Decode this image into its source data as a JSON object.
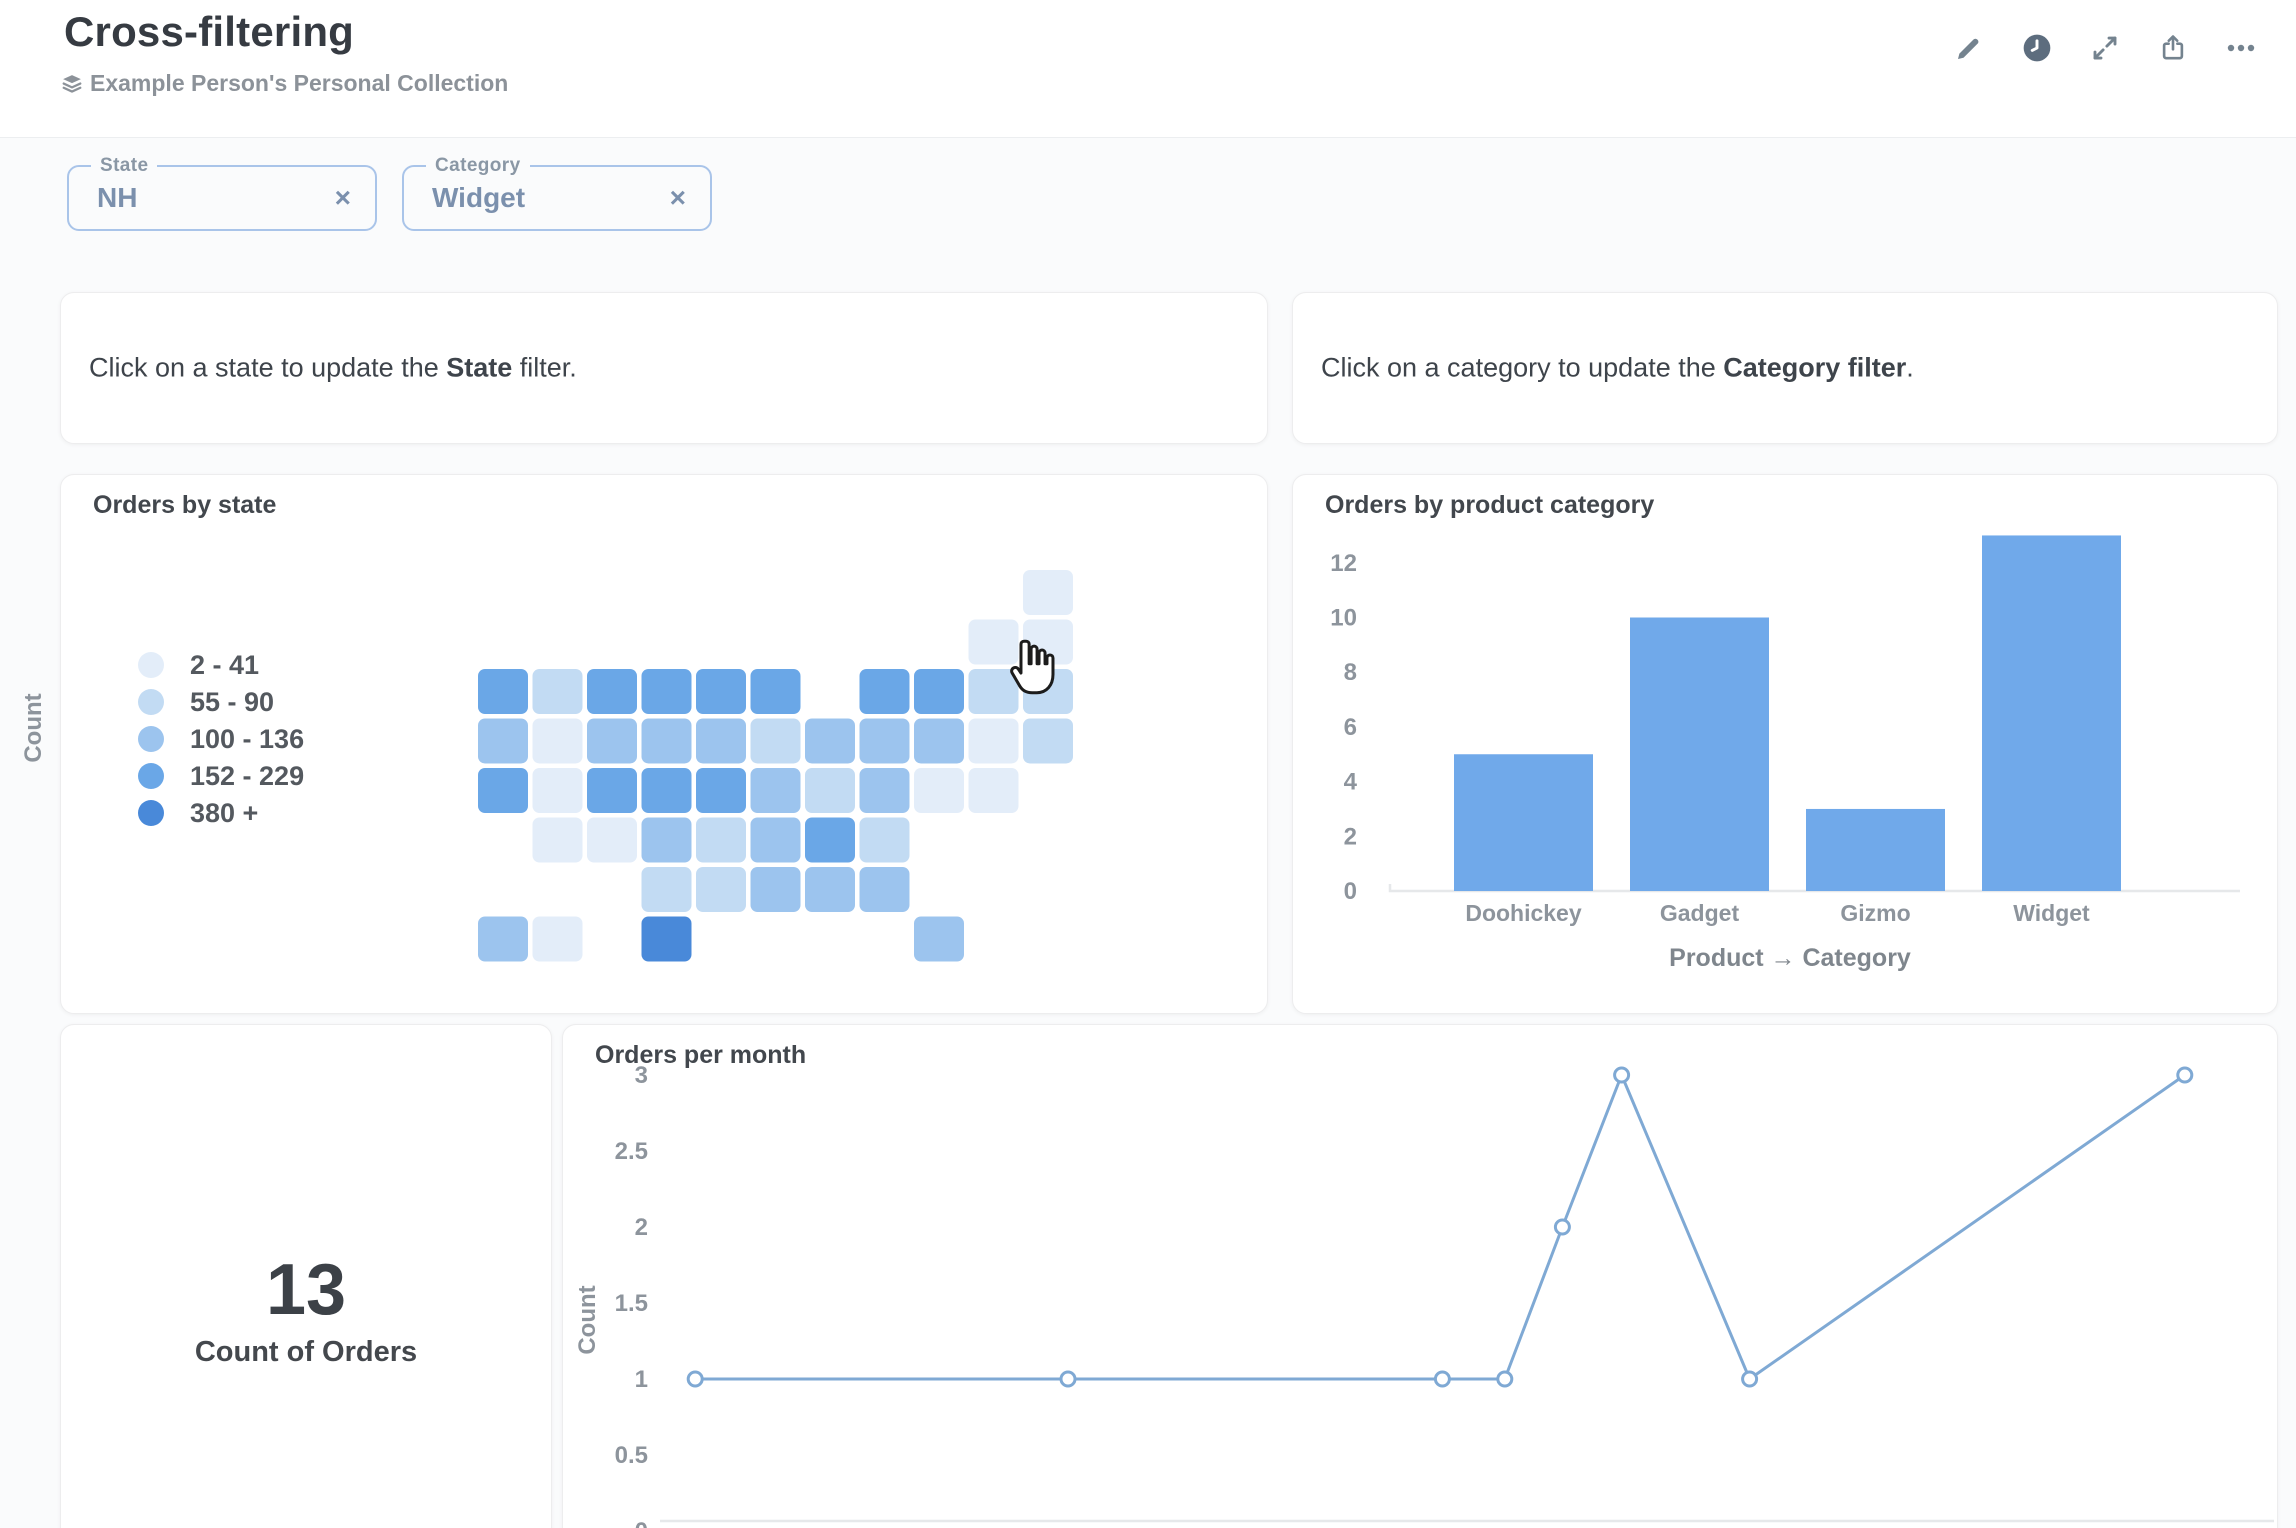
{
  "header": {
    "title": "Cross-filtering",
    "collection": "Example Person's Personal Collection",
    "action_icons": [
      "edit-pencil",
      "history-clock",
      "fullscreen-expand",
      "share",
      "more-ellipsis"
    ]
  },
  "filters": {
    "state": {
      "label": "State",
      "value": "NH",
      "clear": "×"
    },
    "category": {
      "label": "Category",
      "value": "Widget",
      "clear": "×"
    }
  },
  "text_cards": {
    "state": {
      "pre": "Click on a state to update the ",
      "bold": "State",
      "post": " filter."
    },
    "category": {
      "pre": "Click on a category to update the ",
      "bold": "Category filter",
      "post": "."
    }
  },
  "scalar_card": {
    "value": "13",
    "label": "Count of Orders"
  },
  "colors": {
    "brand_bar": "#70a9ea",
    "line": "#7fa9d4",
    "axis_text": "#8d949c",
    "axis_line": "#e6e8ea",
    "filter_border": "#a9c4e9",
    "filter_text": "#7b90ad"
  },
  "chart_data": [
    {
      "type": "heatmap",
      "subtype": "us-state-choropleth",
      "title": "Orders by state",
      "legend": [
        {
          "label": "2 - 41",
          "color": "#e3edf9"
        },
        {
          "label": "55 - 90",
          "color": "#c2dbf3"
        },
        {
          "label": "100 - 136",
          "color": "#9cc4ee"
        },
        {
          "label": "152 - 229",
          "color": "#6aa7e7"
        },
        {
          "label": "380 +",
          "color": "#4989d9"
        }
      ],
      "states": [
        {
          "id": "WA",
          "bucket": 4
        },
        {
          "id": "OR",
          "bucket": 3
        },
        {
          "id": "CA",
          "bucket": 4
        },
        {
          "id": "ID",
          "bucket": 2
        },
        {
          "id": "NV",
          "bucket": 1
        },
        {
          "id": "MT",
          "bucket": 4
        },
        {
          "id": "WY",
          "bucket": 3
        },
        {
          "id": "UT",
          "bucket": 1
        },
        {
          "id": "AZ",
          "bucket": 1
        },
        {
          "id": "CO",
          "bucket": 4
        },
        {
          "id": "NM",
          "bucket": 1
        },
        {
          "id": "ND",
          "bucket": 4
        },
        {
          "id": "SD",
          "bucket": 3
        },
        {
          "id": "NE",
          "bucket": 4
        },
        {
          "id": "KS",
          "bucket": 3
        },
        {
          "id": "OK",
          "bucket": 2
        },
        {
          "id": "TX",
          "bucket": 5
        },
        {
          "id": "MN",
          "bucket": 4
        },
        {
          "id": "IA",
          "bucket": 3
        },
        {
          "id": "MO",
          "bucket": 4
        },
        {
          "id": "AR",
          "bucket": 2
        },
        {
          "id": "LA",
          "bucket": 2
        },
        {
          "id": "WI",
          "bucket": 4
        },
        {
          "id": "IL",
          "bucket": 2
        },
        {
          "id": "MI",
          "bucket": 4
        },
        {
          "id": "IN",
          "bucket": 3
        },
        {
          "id": "OH",
          "bucket": 3
        },
        {
          "id": "KY",
          "bucket": 3
        },
        {
          "id": "TN",
          "bucket": 3
        },
        {
          "id": "MS",
          "bucket": 3
        },
        {
          "id": "AL",
          "bucket": 3
        },
        {
          "id": "GA",
          "bucket": 3
        },
        {
          "id": "FL",
          "bucket": 3
        },
        {
          "id": "SC",
          "bucket": 2
        },
        {
          "id": "NC",
          "bucket": 4
        },
        {
          "id": "VA",
          "bucket": 3
        },
        {
          "id": "WV",
          "bucket": 2
        },
        {
          "id": "PA",
          "bucket": 3
        },
        {
          "id": "NY",
          "bucket": 4
        },
        {
          "id": "NJ",
          "bucket": 1
        },
        {
          "id": "CT",
          "bucket": 2
        },
        {
          "id": "RI",
          "bucket": 2
        },
        {
          "id": "MA",
          "bucket": 2
        },
        {
          "id": "VT",
          "bucket": 1
        },
        {
          "id": "NH",
          "bucket": 1
        },
        {
          "id": "ME",
          "bucket": 1
        },
        {
          "id": "MD",
          "bucket": 1
        },
        {
          "id": "DE",
          "bucket": 1
        },
        {
          "id": "AK",
          "bucket": 3
        },
        {
          "id": "HI",
          "bucket": 1
        }
      ]
    },
    {
      "type": "bar",
      "title": "Orders by product category",
      "categories": [
        "Doohickey",
        "Gadget",
        "Gizmo",
        "Widget"
      ],
      "values": [
        5,
        10,
        3,
        13
      ],
      "xlabel": "Product → Category",
      "ylabel": "Count",
      "yticks": [
        0,
        2,
        4,
        6,
        8,
        10,
        12
      ],
      "ylim": [
        0,
        13.5
      ],
      "grid": false,
      "legend_position": "none"
    },
    {
      "type": "line",
      "title": "Orders per month",
      "ylabel": "Count",
      "xlabel": "",
      "yticks": [
        0,
        0.5,
        1,
        1.5,
        2,
        2.5,
        3
      ],
      "ylim": [
        0,
        3.2
      ],
      "x_axis_labels_visible": false,
      "marker": "open-circle",
      "points": [
        {
          "xf": 0.022,
          "y": 1
        },
        {
          "xf": 0.255,
          "y": 1
        },
        {
          "xf": 0.489,
          "y": 1
        },
        {
          "xf": 0.528,
          "y": 1
        },
        {
          "xf": 0.564,
          "y": 2
        },
        {
          "xf": 0.601,
          "y": 3
        },
        {
          "xf": 0.681,
          "y": 1
        },
        {
          "xf": 0.953,
          "y": 3
        }
      ]
    }
  ]
}
